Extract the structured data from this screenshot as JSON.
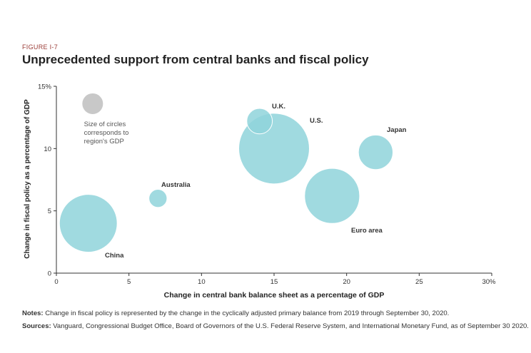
{
  "figure_label": "FIGURE I-7",
  "title": "Unprecedented support from central banks and fiscal policy",
  "notes": {
    "notes_label": "Notes:",
    "notes_text": "Change in fiscal policy is represented by the change in the cyclically adjusted primary balance from 2019 through September 30, 2020.",
    "sources_label": "Sources:",
    "sources_text": "Vanguard, Congressional Budget Office, Board of Governors of the U.S. Federal Reserve System, and International Monetary Fund, as of September 30 2020."
  },
  "chart_data": {
    "type": "scatter",
    "xlabel": "Change in central bank balance sheet as a percentage of GDP",
    "ylabel": "Change in fiscal policy as a percentage of GDP",
    "xlim": [
      0,
      30
    ],
    "ylim": [
      0,
      15
    ],
    "x_ticks": [
      "0",
      "5",
      "10",
      "15",
      "20",
      "25",
      "30%"
    ],
    "y_ticks": [
      "0",
      "5",
      "10",
      "15%"
    ],
    "legend_note": "Size of circles corresponds to region's GDP",
    "bubble_color": "#8fd3da",
    "legend_bubble_color": "#c8c8c8",
    "points": [
      {
        "label": "China",
        "x": 2.2,
        "y": 4.0,
        "size": 14.3
      },
      {
        "label": "Australia",
        "x": 7.0,
        "y": 6.0,
        "size": 1.4
      },
      {
        "label": "U.K.",
        "x": 14.0,
        "y": 12.2,
        "size": 2.8
      },
      {
        "label": "U.S.",
        "x": 15.0,
        "y": 10.0,
        "size": 21.4
      },
      {
        "label": "Japan",
        "x": 22.0,
        "y": 9.7,
        "size": 5.1
      },
      {
        "label": "Euro area",
        "x": 19.0,
        "y": 6.2,
        "size": 13.0
      }
    ]
  }
}
